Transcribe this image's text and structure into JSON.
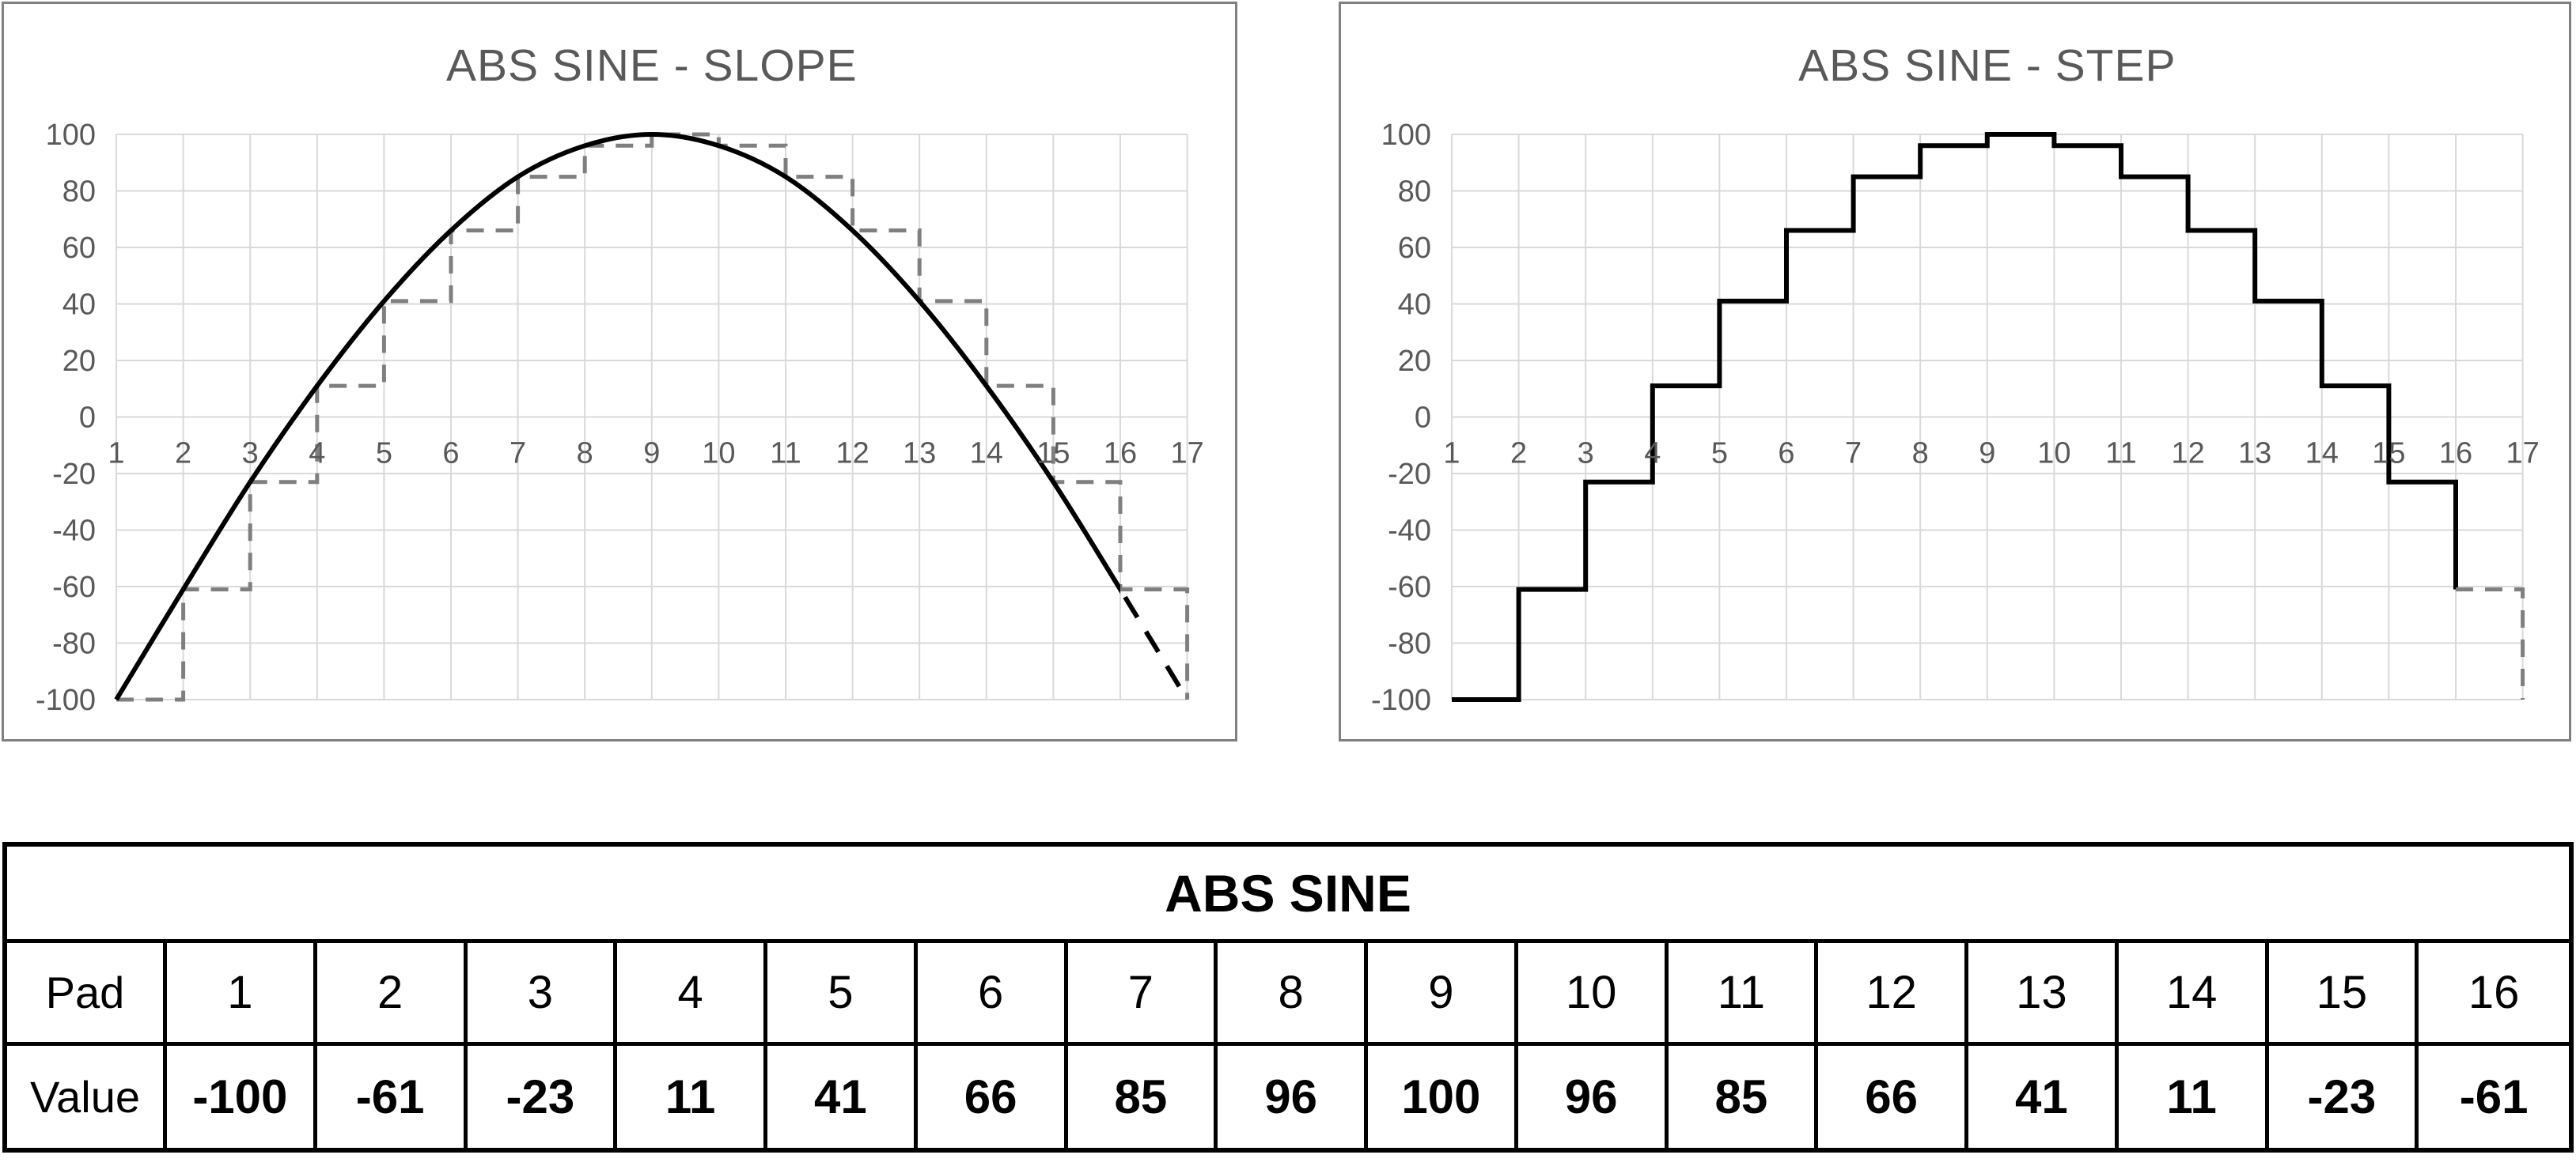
{
  "chart_data": [
    {
      "type": "line",
      "title": "ABS SINE - SLOPE",
      "categories": [
        1,
        2,
        3,
        4,
        5,
        6,
        7,
        8,
        9,
        10,
        11,
        12,
        13,
        14,
        15,
        16
      ],
      "values": [
        -100,
        -61,
        -23,
        11,
        41,
        66,
        85,
        96,
        100,
        96,
        85,
        66,
        41,
        11,
        -23,
        -61
      ],
      "wrap_point": {
        "x": 17,
        "value": -100
      },
      "x_ticks": [
        "1",
        "2",
        "3",
        "4",
        "5",
        "6",
        "7",
        "8",
        "9",
        "10",
        "11",
        "12",
        "13",
        "14",
        "15",
        "16",
        "17"
      ],
      "y_ticks": [
        "100",
        "80",
        "60",
        "40",
        "20",
        "0",
        "-20",
        "-40",
        "-60",
        "-80",
        "-100"
      ],
      "xlim": [
        1,
        17
      ],
      "ylim": [
        -100,
        100
      ],
      "grid": true,
      "legend": "none",
      "series": [
        {
          "name": "slope-interpolated-line",
          "line": "solid",
          "color": "#000000"
        },
        {
          "name": "slope-wrap-projection",
          "line": "dashed",
          "color": "#000000"
        },
        {
          "name": "step-reference",
          "line": "dashed",
          "color": "#7f7f7f"
        }
      ]
    },
    {
      "type": "step",
      "title": "ABS SINE - STEP",
      "categories": [
        1,
        2,
        3,
        4,
        5,
        6,
        7,
        8,
        9,
        10,
        11,
        12,
        13,
        14,
        15,
        16
      ],
      "values": [
        -100,
        -61,
        -23,
        11,
        41,
        66,
        85,
        96,
        100,
        96,
        85,
        66,
        41,
        11,
        -23,
        -61
      ],
      "wrap_point": {
        "x": 17,
        "value": -100
      },
      "x_ticks": [
        "1",
        "2",
        "3",
        "4",
        "5",
        "6",
        "7",
        "8",
        "9",
        "10",
        "11",
        "12",
        "13",
        "14",
        "15",
        "16",
        "17"
      ],
      "y_ticks": [
        "100",
        "80",
        "60",
        "40",
        "20",
        "0",
        "-20",
        "-40",
        "-60",
        "-80",
        "-100"
      ],
      "xlim": [
        1,
        17
      ],
      "ylim": [
        -100,
        100
      ],
      "grid": true,
      "legend": "none",
      "series": [
        {
          "name": "step-hold-line",
          "line": "solid",
          "color": "#000000"
        },
        {
          "name": "step-wrap-projection",
          "line": "dashed",
          "color": "#7f7f7f"
        }
      ]
    }
  ],
  "table": {
    "title": "ABS SINE",
    "row_labels": [
      "Pad",
      "Value"
    ],
    "pads": [
      "1",
      "2",
      "3",
      "4",
      "5",
      "6",
      "7",
      "8",
      "9",
      "10",
      "11",
      "12",
      "13",
      "14",
      "15",
      "16"
    ],
    "values": [
      "-100",
      "-61",
      "-23",
      "11",
      "41",
      "66",
      "85",
      "96",
      "100",
      "96",
      "85",
      "66",
      "41",
      "11",
      "-23",
      "-61"
    ]
  },
  "colors": {
    "title_text": "#595959",
    "axis_text": "#595959",
    "gridline": "#d9d9d9",
    "chart_border": "#808080",
    "series_black": "#000000",
    "series_gray": "#7f7f7f",
    "table_border": "#000000",
    "table_text": "#000000"
  }
}
